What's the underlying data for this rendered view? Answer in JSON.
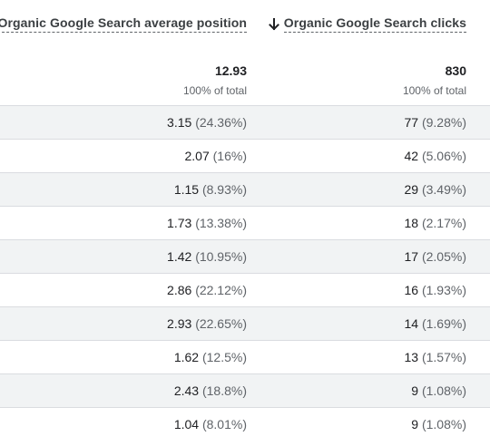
{
  "columns": [
    {
      "label": "Organic Google Search average position",
      "sorted": false
    },
    {
      "label": "Organic Google Search clicks",
      "sorted": true,
      "sort_icon": "arrow-down-icon"
    }
  ],
  "totals": [
    {
      "value": "12.93",
      "sub": "100% of total"
    },
    {
      "value": "830",
      "sub": "100% of total"
    }
  ],
  "rows": [
    {
      "c1": {
        "value": "3.15",
        "pct": "(24.36%)"
      },
      "c2": {
        "value": "77",
        "pct": "(9.28%)"
      }
    },
    {
      "c1": {
        "value": "2.07",
        "pct": "(16%)"
      },
      "c2": {
        "value": "42",
        "pct": "(5.06%)"
      }
    },
    {
      "c1": {
        "value": "1.15",
        "pct": "(8.93%)"
      },
      "c2": {
        "value": "29",
        "pct": "(3.49%)"
      }
    },
    {
      "c1": {
        "value": "1.73",
        "pct": "(13.38%)"
      },
      "c2": {
        "value": "18",
        "pct": "(2.17%)"
      }
    },
    {
      "c1": {
        "value": "1.42",
        "pct": "(10.95%)"
      },
      "c2": {
        "value": "17",
        "pct": "(2.05%)"
      }
    },
    {
      "c1": {
        "value": "2.86",
        "pct": "(22.12%)"
      },
      "c2": {
        "value": "16",
        "pct": "(1.93%)"
      }
    },
    {
      "c1": {
        "value": "2.93",
        "pct": "(22.65%)"
      },
      "c2": {
        "value": "14",
        "pct": "(1.69%)"
      }
    },
    {
      "c1": {
        "value": "1.62",
        "pct": "(12.5%)"
      },
      "c2": {
        "value": "13",
        "pct": "(1.57%)"
      }
    },
    {
      "c1": {
        "value": "2.43",
        "pct": "(18.8%)"
      },
      "c2": {
        "value": "9",
        "pct": "(1.08%)"
      }
    },
    {
      "c1": {
        "value": "1.04",
        "pct": "(8.01%)"
      },
      "c2": {
        "value": "9",
        "pct": "(1.08%)"
      }
    }
  ]
}
